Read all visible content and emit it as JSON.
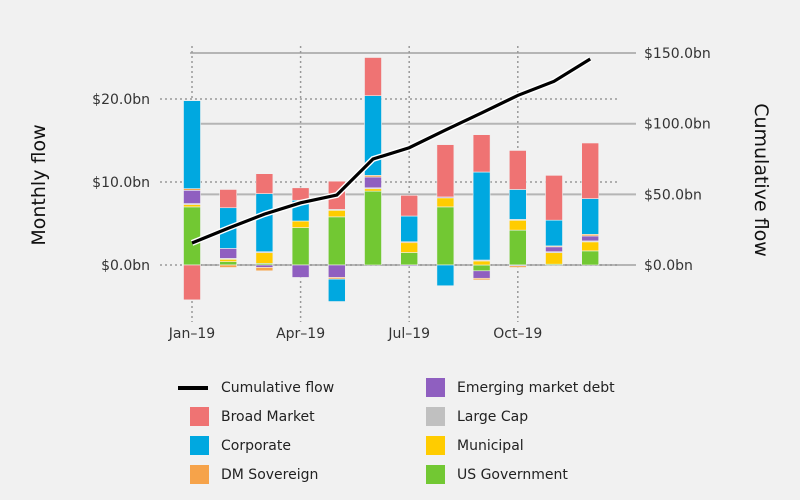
{
  "chart_data": {
    "type": "bar",
    "subtype": "stacked-bar-with-line",
    "categories": [
      "Jan-19",
      "Feb-19",
      "Mar-19",
      "Apr-19",
      "May-19",
      "Jun-19",
      "Jul-19",
      "Aug-19",
      "Sep-19",
      "Oct-19",
      "Nov-19",
      "Dec-19"
    ],
    "x_tick_labels": [
      "Jan–19",
      "Apr–19",
      "Jul–19",
      "Oct–19"
    ],
    "x_tick_indices": [
      0,
      3,
      6,
      9
    ],
    "left_axis": {
      "label": "Monthly flow",
      "ylim": [
        -5,
        25
      ],
      "ticks": [
        0,
        10,
        20
      ],
      "tick_labels": [
        "$0.0bn",
        "$10.0bn",
        "$20.0bn"
      ],
      "grid": "dotted"
    },
    "right_axis": {
      "label": "Cumulative flow",
      "ylim": [
        -18,
        162
      ],
      "ticks": [
        0,
        50,
        100,
        150
      ],
      "tick_labels": [
        "$0.0bn",
        "$50.0bn",
        "$100.0bn",
        "$150.0bn"
      ],
      "grid": "solid"
    },
    "series": [
      {
        "name": "US Government",
        "color": "#72c833",
        "values": [
          7.0,
          0.4,
          0.2,
          4.5,
          5.8,
          8.9,
          1.5,
          7.0,
          -0.7,
          4.2,
          0.1,
          1.7
        ]
      },
      {
        "name": "Municipal",
        "color": "#ffcc00",
        "values": [
          0.3,
          0.3,
          1.3,
          0.8,
          0.8,
          0.3,
          1.2,
          1.1,
          0.5,
          1.2,
          1.4,
          1.1
        ]
      },
      {
        "name": "Large Cap",
        "color": "#c0c0c0",
        "values": [
          0.1,
          0.1,
          0.1,
          0.0,
          0.1,
          0.1,
          0.0,
          0.0,
          0.1,
          0.1,
          0.1,
          0.1
        ]
      },
      {
        "name": "Emerging market debt",
        "color": "#8f5fc0",
        "values": [
          1.6,
          1.2,
          -0.3,
          -1.5,
          -1.5,
          1.3,
          -0.1,
          0.1,
          -0.9,
          -0.1,
          0.6,
          0.6
        ]
      },
      {
        "name": "DM Sovereign",
        "color": "#f6a34a",
        "values": [
          0.2,
          -0.3,
          -0.4,
          0.0,
          -0.2,
          0.2,
          0.1,
          0.0,
          -0.2,
          -0.2,
          0.1,
          0.2
        ]
      },
      {
        "name": "Corporate",
        "color": "#00a8e0",
        "values": [
          10.6,
          4.9,
          7.0,
          2.5,
          -2.7,
          9.6,
          3.1,
          -2.5,
          10.6,
          3.6,
          3.1,
          4.3
        ]
      },
      {
        "name": "Broad Market",
        "color": "#ef7373",
        "values": [
          -4.2,
          2.2,
          2.4,
          1.5,
          3.4,
          4.6,
          2.5,
          6.3,
          4.5,
          4.7,
          5.4,
          6.7
        ]
      }
    ],
    "line": {
      "name": "Cumulative flow",
      "axis": "right",
      "color": "#000000",
      "values": [
        15.6,
        26.0,
        36.0,
        44.0,
        49.5,
        75.0,
        83.0,
        95.5,
        107.6,
        120.0,
        130.0,
        145.8
      ]
    },
    "legend": {
      "placement": "bottom",
      "items": [
        {
          "label": "Cumulative flow",
          "kind": "line",
          "color": "#000000"
        },
        {
          "label": "Emerging market debt",
          "kind": "box",
          "color": "#8f5fc0"
        },
        {
          "label": "Broad Market",
          "kind": "box",
          "color": "#ef7373"
        },
        {
          "label": "Large Cap",
          "kind": "box",
          "color": "#c0c0c0"
        },
        {
          "label": "Corporate",
          "kind": "box",
          "color": "#00a8e0"
        },
        {
          "label": "Municipal",
          "kind": "box",
          "color": "#ffcc00"
        },
        {
          "label": "DM Sovereign",
          "kind": "box",
          "color": "#f6a34a"
        },
        {
          "label": "US Government",
          "kind": "box",
          "color": "#72c833"
        }
      ]
    }
  }
}
